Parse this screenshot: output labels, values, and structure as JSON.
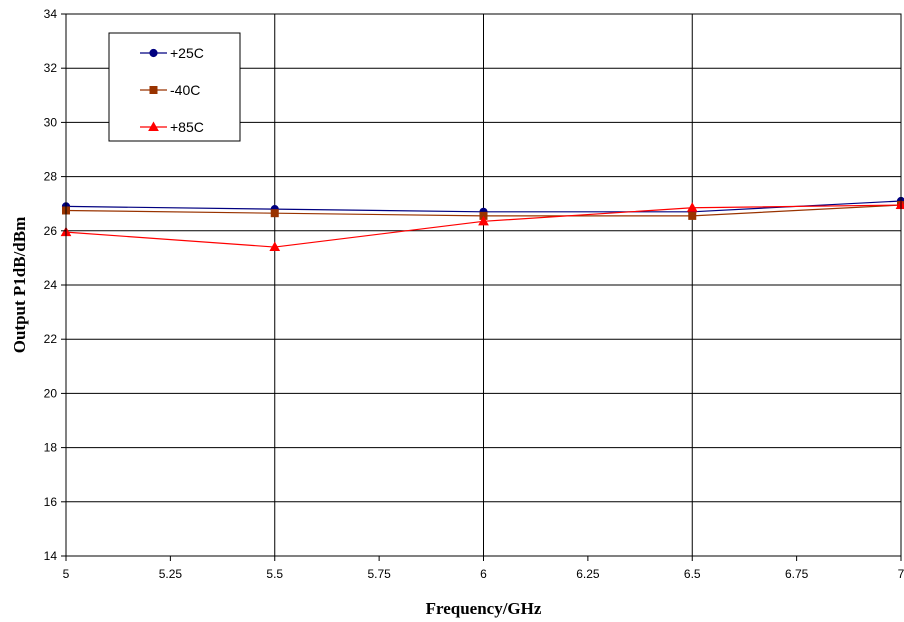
{
  "chart_data": {
    "type": "line",
    "title": "",
    "xlabel": "Frequency/GHz",
    "ylabel": "Output P1dB/dBm",
    "xlim": [
      5,
      7
    ],
    "ylim": [
      14,
      34
    ],
    "xticks": [
      "5",
      "5.25",
      "5.5",
      "5.75",
      "6",
      "6.25",
      "6.5",
      "6.75",
      "7"
    ],
    "yticks": [
      "14",
      "16",
      "18",
      "20",
      "22",
      "24",
      "26",
      "28",
      "30",
      "32",
      "34"
    ],
    "grid": true,
    "legend_position": "top-left",
    "x": [
      5,
      5.5,
      6,
      6.5,
      7
    ],
    "series": [
      {
        "name": "+25C",
        "values": [
          26.9,
          26.8,
          26.7,
          26.7,
          27.1
        ],
        "color": "#000080",
        "marker": "circle"
      },
      {
        "name": "-40C",
        "values": [
          26.75,
          26.65,
          26.55,
          26.55,
          26.95
        ],
        "color": "#993300",
        "marker": "square"
      },
      {
        "name": "+85C",
        "values": [
          25.95,
          25.4,
          26.35,
          26.85,
          26.95
        ],
        "color": "#ff0000",
        "marker": "triangle"
      }
    ]
  }
}
